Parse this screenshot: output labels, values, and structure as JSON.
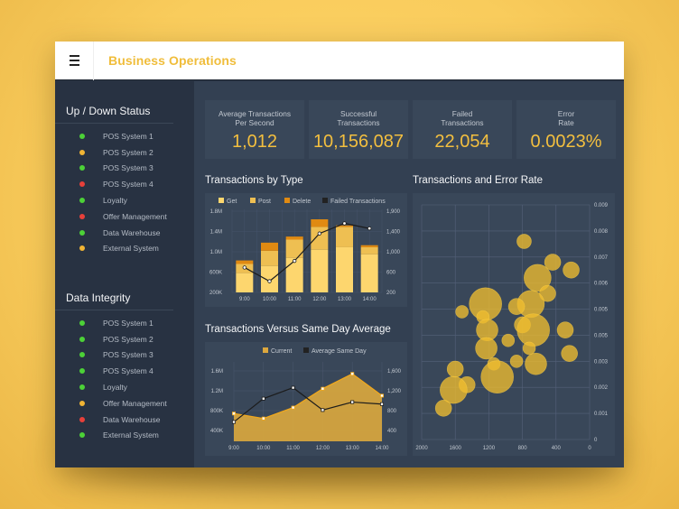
{
  "header": {
    "menu_icon": "hamburger-menu-icon",
    "title": "Business Operations"
  },
  "colors": {
    "accent": "#f0bd3b",
    "green": "#4cd137",
    "amber": "#f1b434",
    "red": "#e8403a",
    "get": "#fdd66e",
    "post": "#eebf52",
    "delete": "#e08a12",
    "failed": "#222222"
  },
  "sidebar": {
    "sections": [
      {
        "title": "Up / Down Status",
        "items": [
          {
            "label": "POS System 1",
            "status": "green"
          },
          {
            "label": "POS System 2",
            "status": "amber"
          },
          {
            "label": "POS System 3",
            "status": "green"
          },
          {
            "label": "POS System 4",
            "status": "red"
          },
          {
            "label": "Loyalty",
            "status": "green"
          },
          {
            "label": "Offer Management",
            "status": "red"
          },
          {
            "label": "Data Warehouse",
            "status": "green"
          },
          {
            "label": "External System",
            "status": "amber"
          }
        ]
      },
      {
        "title": "Data Integrity",
        "items": [
          {
            "label": "POS System 1",
            "status": "green"
          },
          {
            "label": "POS System 2",
            "status": "green"
          },
          {
            "label": "POS System 3",
            "status": "green"
          },
          {
            "label": "POS System 4",
            "status": "green"
          },
          {
            "label": "Loyalty",
            "status": "green"
          },
          {
            "label": "Offer Management",
            "status": "amber"
          },
          {
            "label": "Data Warehouse",
            "status": "red"
          },
          {
            "label": "External System",
            "status": "green"
          }
        ]
      }
    ]
  },
  "kpis": [
    {
      "label": "Average Transactions\nPer Second",
      "value": "1,012"
    },
    {
      "label": "Successful\nTransactions",
      "value": "10,156,087"
    },
    {
      "label": "Failed\nTransactions",
      "value": "22,054"
    },
    {
      "label": "Error\nRate",
      "value": "0.0023%"
    }
  ],
  "chart_data": [
    {
      "id": "transactions-by-type",
      "type": "bar",
      "title": "Transactions by Type",
      "stacked": true,
      "categories": [
        "9:00",
        "10:00",
        "11:00",
        "12:00",
        "13:00",
        "14:00"
      ],
      "series": [
        {
          "name": "Get",
          "values": [
            580000,
            720000,
            880000,
            1040000,
            1090000,
            950000
          ]
        },
        {
          "name": "Post",
          "values": [
            180000,
            300000,
            360000,
            450000,
            400000,
            140000
          ]
        },
        {
          "name": "Delete",
          "values": [
            70000,
            160000,
            60000,
            150000,
            30000,
            40000
          ]
        }
      ],
      "line_series": {
        "name": "Failed Transactions",
        "values": [
          690,
          420,
          820,
          1360,
          1560,
          1460
        ]
      },
      "legend": [
        "Get",
        "Post",
        "Delete",
        "Failed Transactions"
      ],
      "legend_position": "top",
      "y_left": {
        "ticks": [
          "1.8M",
          "1.4M",
          "1.0M",
          "600K",
          "200K"
        ],
        "range": [
          200000,
          1800000
        ]
      },
      "y_right": {
        "ticks": [
          "1,900",
          "1,400",
          "1,000",
          "600",
          "200"
        ],
        "range": [
          200,
          1800
        ]
      },
      "grid": true
    },
    {
      "id": "transactions-vs-average",
      "type": "area",
      "title": "Transactions Versus Same Day Average",
      "categories": [
        "9:00",
        "10:00",
        "11:00",
        "12:00",
        "13:00",
        "14:00"
      ],
      "series": [
        {
          "name": "Current",
          "values": [
            760000,
            660000,
            880000,
            1260000,
            1560000,
            1120000
          ]
        },
        {
          "name": "Average Same Day",
          "values": [
            590,
            1060,
            1280,
            830,
            990,
            950
          ]
        }
      ],
      "legend": [
        "Current",
        "Average Same Day"
      ],
      "legend_position": "top",
      "y_left": {
        "ticks": [
          "1.6M",
          "1.2M",
          "800K",
          "400K"
        ],
        "range": [
          200000,
          1800000
        ]
      },
      "y_right": {
        "ticks": [
          "1,600",
          "1,200",
          "800",
          "400"
        ],
        "range": [
          200,
          1800
        ]
      },
      "grid": true
    },
    {
      "id": "transactions-and-error-rate",
      "type": "scatter",
      "title": "Transactions and Error Rate",
      "x_ticks": [
        "2000",
        "1600",
        "1200",
        "800",
        "400",
        "0"
      ],
      "x_range": [
        2000,
        0
      ],
      "y_ticks": [
        "0.009",
        "0.008",
        "0.007",
        "0.006",
        "0.005",
        "0.005",
        "0.003",
        "0.002",
        "0.001",
        "0"
      ],
      "y_range": [
        0,
        0.009
      ],
      "grid": true,
      "points": [
        {
          "x": 780,
          "y": 0.0076,
          "r": 8
        },
        {
          "x": 440,
          "y": 0.0068,
          "r": 9
        },
        {
          "x": 220,
          "y": 0.0065,
          "r": 9
        },
        {
          "x": 620,
          "y": 0.0062,
          "r": 15
        },
        {
          "x": 500,
          "y": 0.0056,
          "r": 9
        },
        {
          "x": 1240,
          "y": 0.0052,
          "r": 18
        },
        {
          "x": 700,
          "y": 0.0052,
          "r": 15
        },
        {
          "x": 870,
          "y": 0.0051,
          "r": 9
        },
        {
          "x": 1520,
          "y": 0.0049,
          "r": 7
        },
        {
          "x": 1270,
          "y": 0.0047,
          "r": 7
        },
        {
          "x": 800,
          "y": 0.0044,
          "r": 9
        },
        {
          "x": 670,
          "y": 0.0042,
          "r": 18
        },
        {
          "x": 1220,
          "y": 0.0042,
          "r": 12
        },
        {
          "x": 290,
          "y": 0.0042,
          "r": 9
        },
        {
          "x": 970,
          "y": 0.0038,
          "r": 7
        },
        {
          "x": 1230,
          "y": 0.0035,
          "r": 12
        },
        {
          "x": 720,
          "y": 0.0035,
          "r": 7
        },
        {
          "x": 240,
          "y": 0.0033,
          "r": 9
        },
        {
          "x": 870,
          "y": 0.003,
          "r": 7
        },
        {
          "x": 640,
          "y": 0.0029,
          "r": 12
        },
        {
          "x": 1140,
          "y": 0.0029,
          "r": 7
        },
        {
          "x": 1600,
          "y": 0.0027,
          "r": 9
        },
        {
          "x": 1100,
          "y": 0.0024,
          "r": 18
        },
        {
          "x": 1460,
          "y": 0.0021,
          "r": 9
        },
        {
          "x": 1620,
          "y": 0.0019,
          "r": 15
        },
        {
          "x": 1740,
          "y": 0.0012,
          "r": 9
        }
      ]
    }
  ]
}
